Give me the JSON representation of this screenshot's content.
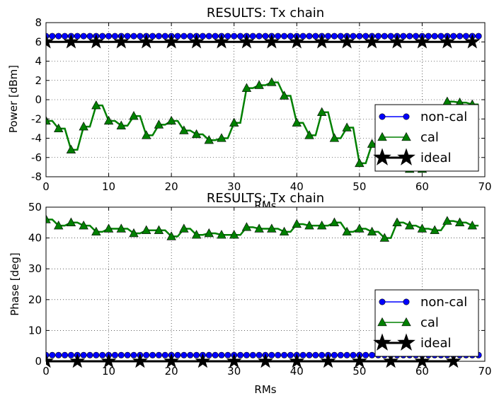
{
  "chart_data": [
    {
      "type": "line",
      "title": "RESULTS: Tx chain",
      "xlabel": "RMs",
      "ylabel": "Power [dBm]",
      "xlim": [
        0,
        70
      ],
      "ylim": [
        -8,
        8
      ],
      "xticks": [
        0,
        10,
        20,
        30,
        40,
        50,
        60,
        70
      ],
      "yticks": [
        -8,
        -6,
        -4,
        -2,
        0,
        2,
        4,
        6,
        8
      ],
      "grid": true,
      "legend_position": "lower-right",
      "series": [
        {
          "name": "non-cal",
          "color": "#0000ff",
          "marker": "circle",
          "x": [
            0,
            1,
            2,
            3,
            4,
            5,
            6,
            7,
            8,
            9,
            10,
            11,
            12,
            13,
            14,
            15,
            16,
            17,
            18,
            19,
            20,
            21,
            22,
            23,
            24,
            25,
            26,
            27,
            28,
            29,
            30,
            31,
            32,
            33,
            34,
            35,
            36,
            37,
            38,
            39,
            40,
            41,
            42,
            43,
            44,
            45,
            46,
            47,
            48,
            49,
            50,
            51,
            52,
            53,
            54,
            55,
            56,
            57,
            58,
            59,
            60,
            61,
            62,
            63,
            64,
            65,
            66,
            67,
            68,
            69
          ],
          "y": [
            6.6,
            6.6,
            6.6,
            6.6,
            6.6,
            6.6,
            6.6,
            6.6,
            6.6,
            6.6,
            6.6,
            6.6,
            6.6,
            6.6,
            6.6,
            6.6,
            6.6,
            6.6,
            6.6,
            6.6,
            6.6,
            6.6,
            6.6,
            6.6,
            6.6,
            6.6,
            6.6,
            6.6,
            6.6,
            6.6,
            6.6,
            6.6,
            6.6,
            6.6,
            6.6,
            6.6,
            6.6,
            6.6,
            6.6,
            6.6,
            6.6,
            6.6,
            6.6,
            6.6,
            6.6,
            6.6,
            6.6,
            6.6,
            6.6,
            6.6,
            6.6,
            6.6,
            6.6,
            6.6,
            6.6,
            6.6,
            6.6,
            6.6,
            6.6,
            6.6,
            6.6,
            6.6,
            6.6,
            6.6,
            6.6,
            6.6,
            6.6,
            6.6,
            6.6,
            6.6
          ]
        },
        {
          "name": "cal",
          "color": "#008000",
          "marker": "triangle",
          "x": [
            0,
            1,
            2,
            3,
            4,
            5,
            6,
            7,
            8,
            9,
            10,
            11,
            12,
            13,
            14,
            15,
            16,
            17,
            18,
            19,
            20,
            21,
            22,
            23,
            24,
            25,
            26,
            27,
            28,
            29,
            30,
            31,
            32,
            33,
            34,
            35,
            36,
            37,
            38,
            39,
            40,
            41,
            42,
            43,
            44,
            45,
            46,
            47,
            48,
            49,
            50,
            51,
            52,
            53,
            54,
            55,
            56,
            57,
            58,
            59,
            60,
            61,
            62,
            63,
            64,
            65,
            66,
            67,
            68,
            69
          ],
          "y": [
            -2.2,
            -2.2,
            -3.0,
            -3.0,
            -5.2,
            -5.2,
            -2.8,
            -2.8,
            -0.6,
            -0.6,
            -2.2,
            -2.2,
            -2.7,
            -2.7,
            -1.7,
            -1.7,
            -3.7,
            -3.7,
            -2.6,
            -2.6,
            -2.2,
            -2.2,
            -3.2,
            -3.2,
            -3.6,
            -3.6,
            -4.2,
            -4.2,
            -4.0,
            -4.0,
            -2.4,
            -2.4,
            1.2,
            1.2,
            1.5,
            1.5,
            1.8,
            1.8,
            0.4,
            0.4,
            -2.4,
            -2.4,
            -3.7,
            -3.7,
            -1.3,
            -1.3,
            -4.0,
            -4.0,
            -2.9,
            -2.9,
            -6.6,
            -6.6,
            -4.6,
            -4.6,
            -5.2,
            -5.2,
            -6.3,
            -6.3,
            -7.2,
            -7.2,
            -7.2,
            -7.2,
            -2.5,
            -2.5,
            -0.2,
            -0.2,
            -0.3,
            -0.3,
            -0.5,
            -0.5
          ]
        },
        {
          "name": "ideal",
          "color": "#000000",
          "marker": "star",
          "x": [
            0,
            4,
            8,
            12,
            16,
            20,
            24,
            28,
            32,
            36,
            40,
            44,
            48,
            52,
            56,
            60,
            64,
            68
          ],
          "y": [
            6,
            6,
            6,
            6,
            6,
            6,
            6,
            6,
            6,
            6,
            6,
            6,
            6,
            6,
            6,
            6,
            6,
            6
          ]
        }
      ]
    },
    {
      "type": "line",
      "title": "RESULTS: Tx chain",
      "xlabel": "RMs",
      "ylabel": "Phase [deg]",
      "xlim": [
        0,
        70
      ],
      "ylim": [
        0,
        50
      ],
      "xticks": [
        0,
        10,
        20,
        30,
        40,
        50,
        60,
        70
      ],
      "yticks": [
        0,
        10,
        20,
        30,
        40,
        50
      ],
      "grid": true,
      "legend_position": "lower-right",
      "series": [
        {
          "name": "non-cal",
          "color": "#0000ff",
          "marker": "circle",
          "x": [
            0,
            1,
            2,
            3,
            4,
            5,
            6,
            7,
            8,
            9,
            10,
            11,
            12,
            13,
            14,
            15,
            16,
            17,
            18,
            19,
            20,
            21,
            22,
            23,
            24,
            25,
            26,
            27,
            28,
            29,
            30,
            31,
            32,
            33,
            34,
            35,
            36,
            37,
            38,
            39,
            40,
            41,
            42,
            43,
            44,
            45,
            46,
            47,
            48,
            49,
            50,
            51,
            52,
            53,
            54,
            55,
            56,
            57,
            58,
            59,
            60,
            61,
            62,
            63,
            64,
            65,
            66,
            67,
            68,
            69
          ],
          "y": [
            2,
            2,
            2,
            2,
            2,
            2,
            2,
            2,
            2,
            2,
            2,
            2,
            2,
            2,
            2,
            2,
            2,
            2,
            2,
            2,
            2,
            2,
            2,
            2,
            2,
            2,
            2,
            2,
            2,
            2,
            2,
            2,
            2,
            2,
            2,
            2,
            2,
            2,
            2,
            2,
            2,
            2,
            2,
            2,
            2,
            2,
            2,
            2,
            2,
            2,
            2,
            2,
            2,
            2,
            2,
            2,
            2,
            2,
            2,
            2,
            2,
            2,
            2,
            2,
            2,
            2,
            2,
            2,
            2,
            2
          ]
        },
        {
          "name": "cal",
          "color": "#008000",
          "marker": "triangle",
          "x": [
            0,
            1,
            2,
            3,
            4,
            5,
            6,
            7,
            8,
            9,
            10,
            11,
            12,
            13,
            14,
            15,
            16,
            17,
            18,
            19,
            20,
            21,
            22,
            23,
            24,
            25,
            26,
            27,
            28,
            29,
            30,
            31,
            32,
            33,
            34,
            35,
            36,
            37,
            38,
            39,
            40,
            41,
            42,
            43,
            44,
            45,
            46,
            47,
            48,
            49,
            50,
            51,
            52,
            53,
            54,
            55,
            56,
            57,
            58,
            59,
            60,
            61,
            62,
            63,
            64,
            65,
            66,
            67,
            68,
            69
          ],
          "y": [
            46,
            46,
            44,
            44,
            45,
            45,
            44,
            44,
            42,
            42,
            43,
            43,
            43,
            43,
            41.5,
            41.5,
            42.5,
            42.5,
            42.5,
            42.5,
            40.5,
            40.5,
            43,
            43,
            41,
            41,
            41.5,
            41.5,
            41,
            41,
            41,
            41,
            43.5,
            43.5,
            43,
            43,
            43,
            43,
            42,
            42,
            44.5,
            44.5,
            44,
            44,
            44,
            44,
            45,
            45,
            42,
            42,
            43,
            43,
            42,
            42,
            40,
            40,
            45,
            45,
            44,
            44,
            43,
            43,
            42.5,
            42.5,
            45.5,
            45.5,
            45,
            45,
            44,
            44
          ]
        },
        {
          "name": "ideal",
          "color": "#000000",
          "marker": "star",
          "x": [
            0,
            5,
            10,
            15,
            20,
            25,
            30,
            35,
            40,
            45,
            50,
            55,
            60,
            65
          ],
          "y": [
            0,
            0,
            0,
            0,
            0,
            0,
            0,
            0,
            0,
            0,
            0,
            0,
            0,
            0
          ]
        }
      ]
    }
  ]
}
